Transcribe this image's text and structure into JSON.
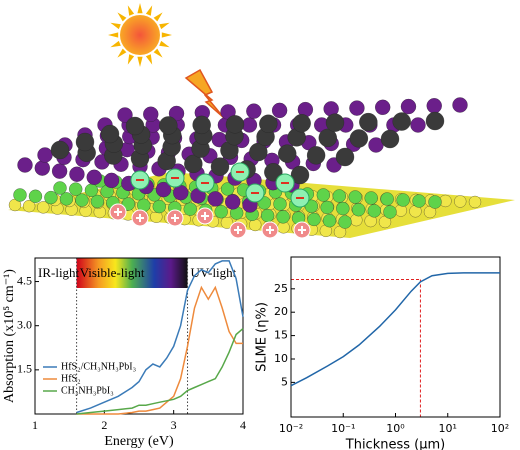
{
  "chart_data": [
    {
      "type": "line",
      "x_label": "Energy (eV)",
      "y_label": "Absorption (x10⁵ cm⁻¹)",
      "xlim": [
        1,
        4
      ],
      "xticks": [
        1,
        2,
        3,
        4
      ],
      "ylim": [
        0,
        5.3
      ],
      "yticks": [
        1.5,
        {
          "value": 3,
          "label": "3.0"
        },
        4.5
      ],
      "annotations": [
        "IR-light",
        "Visible-light",
        "UV-light"
      ],
      "vlines": [
        1.6,
        3.2
      ],
      "x": [
        1.6,
        1.8,
        2.0,
        2.2,
        2.4,
        2.5,
        2.6,
        2.7,
        2.8,
        2.9,
        3.0,
        3.1,
        3.2,
        3.3,
        3.4,
        3.5,
        3.6,
        3.7,
        3.8,
        3.9,
        4.0
      ],
      "series": [
        {
          "name": "HfS₂/CH₃NH₃PbI₃",
          "color": "#3b7bb8",
          "values": [
            0.05,
            0.2,
            0.4,
            0.6,
            0.9,
            1.1,
            1.5,
            1.7,
            1.6,
            1.9,
            2.3,
            3.0,
            4.2,
            4.7,
            4.9,
            4.8,
            5.1,
            5.2,
            5.2,
            4.6,
            3.3
          ]
        },
        {
          "name": "HfS₂",
          "color": "#ee8a3c",
          "values": [
            0,
            0,
            0,
            0,
            0.05,
            0.1,
            0.1,
            0.15,
            0.2,
            0.4,
            0.6,
            1.2,
            2.3,
            3.6,
            4.3,
            3.9,
            4.3,
            3.6,
            2.8,
            2.4,
            2.4
          ]
        },
        {
          "name": "CH₃NH₃PbI₃",
          "color": "#58a84a",
          "values": [
            0,
            0.05,
            0.1,
            0.15,
            0.2,
            0.3,
            0.3,
            0.35,
            0.4,
            0.45,
            0.5,
            0.6,
            0.8,
            0.9,
            1.0,
            1.1,
            1.2,
            1.6,
            2.1,
            2.7,
            2.9
          ]
        }
      ]
    },
    {
      "type": "line",
      "x_label": "Thickness (μm)",
      "y_label": "SLME (η%)",
      "xscale": "log",
      "xlim": [
        0.01,
        100
      ],
      "xticks": [
        {
          "value": 0.01,
          "label": "10⁻²"
        },
        {
          "value": 0.1,
          "label": "10⁻¹"
        },
        {
          "value": 1,
          "label": "10⁰"
        },
        {
          "value": 10,
          "label": "10¹"
        },
        {
          "value": 100,
          "label": "10²"
        }
      ],
      "ylim": [
        -2.4,
        31.8
      ],
      "yticks": [
        5,
        10,
        15,
        20,
        25
      ],
      "crosshair": {
        "x": 3,
        "y": 27
      },
      "x": [
        0.01,
        0.02,
        0.05,
        0.1,
        0.2,
        0.5,
        1,
        2,
        3,
        5,
        10,
        20,
        100
      ],
      "series": [
        {
          "color": "#2166a8",
          "values": [
            4.3,
            6,
            8.5,
            10.5,
            13,
            17,
            20.5,
            24.5,
            26.5,
            27.8,
            28.3,
            28.4,
            28.4
          ]
        }
      ]
    }
  ]
}
